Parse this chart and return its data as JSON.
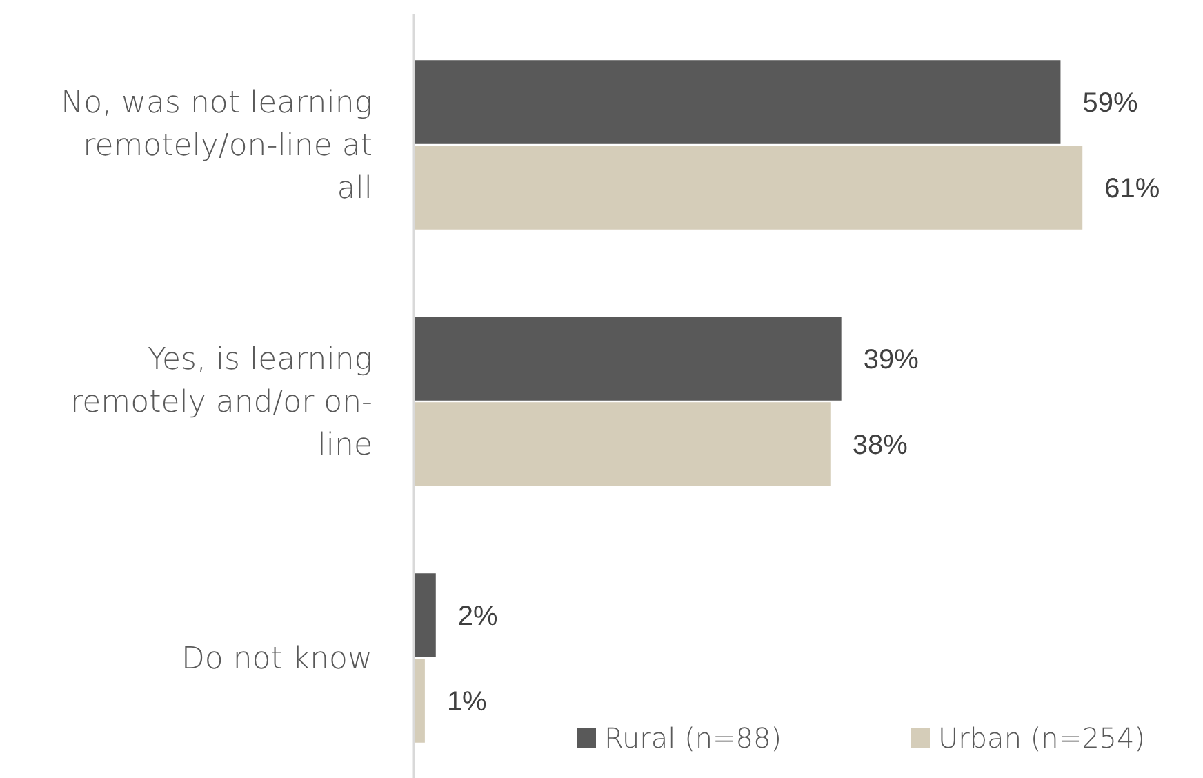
{
  "chart_data": {
    "type": "bar",
    "orientation": "horizontal",
    "categories": [
      "No, was not learning remotely/on-line at all",
      "Yes, is learning remotely and/or on-line",
      "Do not know"
    ],
    "series": [
      {
        "name": "Rural (n=88)",
        "color": "#595959",
        "values": [
          59,
          39,
          2
        ],
        "value_labels": [
          "59%",
          "39%",
          "2%"
        ]
      },
      {
        "name": "Urban (n=254)",
        "color": "#d5cdb9",
        "values": [
          61,
          38,
          1
        ],
        "value_labels": [
          "61%",
          "38%",
          "1%"
        ]
      }
    ],
    "xlim": [
      0,
      72
    ],
    "tick_labels": "y",
    "legend": "bottom right"
  }
}
